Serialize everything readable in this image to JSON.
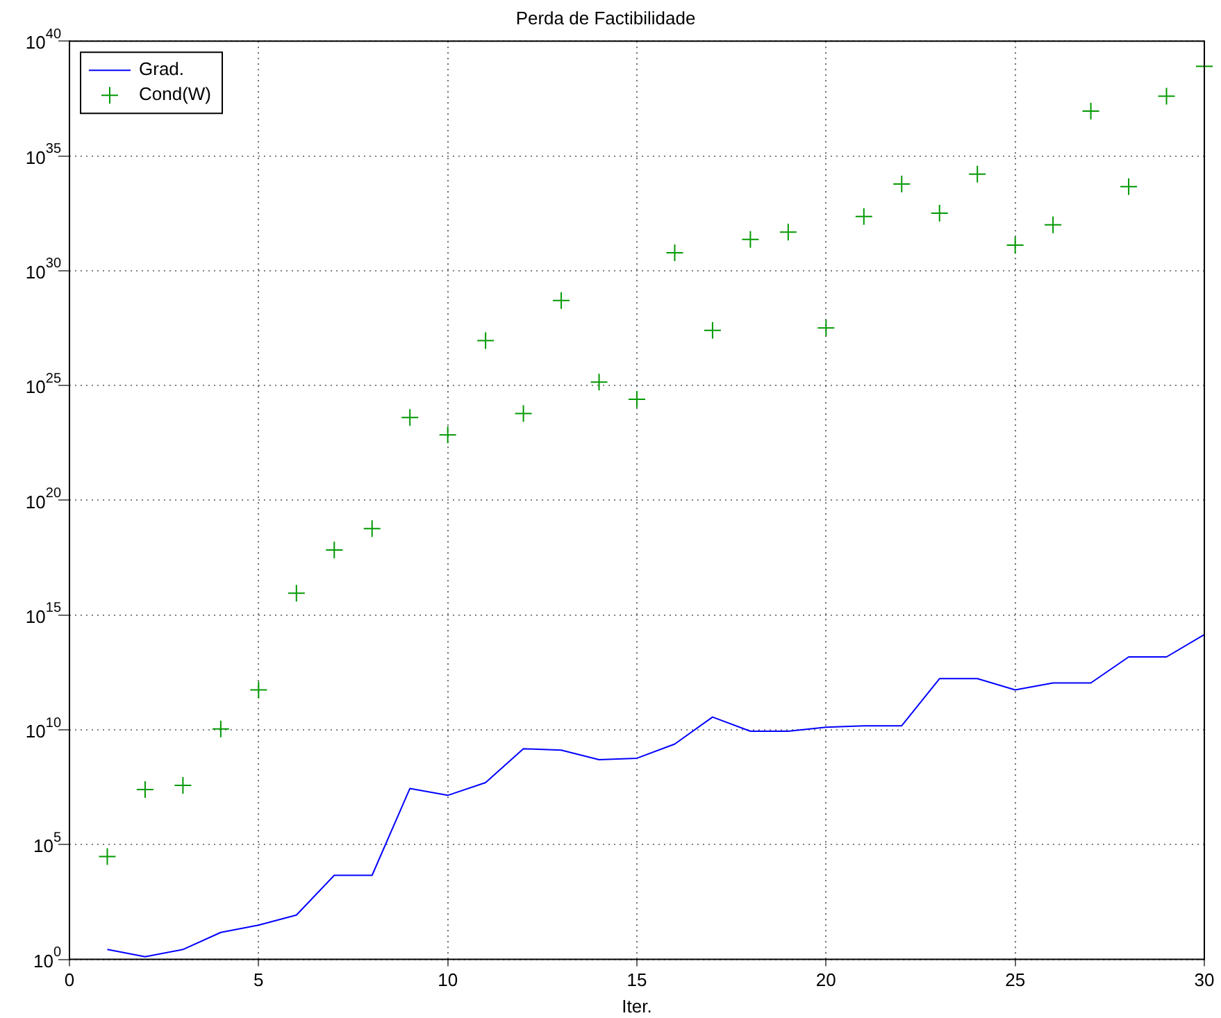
{
  "chart_data": {
    "type": "line",
    "title": "Perda de Factibilidade",
    "xlabel": "Iter.",
    "log": "y",
    "grid": true,
    "legend": "top left",
    "x": [
      1,
      2,
      3,
      4,
      5,
      6,
      7,
      8,
      9,
      10,
      11,
      12,
      13,
      14,
      15,
      16,
      17,
      18,
      19,
      20,
      21,
      22,
      23,
      24,
      25,
      26,
      27,
      28,
      29,
      30
    ],
    "xlim": [
      0,
      30
    ],
    "xticks": [
      0,
      5,
      10,
      15,
      20,
      25,
      30
    ],
    "ylim": [
      1,
      1e+40
    ],
    "yticks": [
      {
        "value": 1,
        "label": "10$^{0}$"
      },
      {
        "value": 100000.0,
        "label": "10$^{5}$"
      },
      {
        "value": 10000000000.0,
        "label": "10$^{10}$"
      },
      {
        "value": 1000000000000000.0,
        "label": "10$^{15}$"
      },
      {
        "value": 1e+20,
        "label": "10$^{20}$"
      },
      {
        "value": 1e+25,
        "label": "10$^{25}$"
      },
      {
        "value": 1e+30,
        "label": "10$^{30}$"
      },
      {
        "value": 1e+35,
        "label": "10$^{35}$"
      },
      {
        "value": 1e+40,
        "label": "10$^{40}$"
      }
    ],
    "series": [
      {
        "name": "Grad.",
        "color": "#0000ff",
        "marker": "none",
        "line_style": "solid",
        "values": [
          2.7,
          1.3,
          2.7,
          15,
          31,
          85,
          4600.0,
          4600.0,
          28000000.0,
          14000000.0,
          50000000.0,
          1500000000.0,
          1300000000.0,
          500000000.0,
          580000000.0,
          2400000000.0,
          36000000000.0,
          8700000000.0,
          8700000000.0,
          13000000000.0,
          15000000000.0,
          15000000000.0,
          1700000000000.0,
          1700000000000.0,
          550000000000.0,
          1100000000000.0,
          1100000000000.0,
          15000000000000.0,
          15000000000000.0,
          140000000000000.0
        ]
      },
      {
        "name": "Cond(W)",
        "type": "scatter",
        "color": "#009900",
        "marker": "cross",
        "values": [
          30000.0,
          25000000.0,
          38000000.0,
          11000000000.0,
          550000000000.0,
          9000000000000000.0,
          6.8e+17,
          5.8e+18,
          4e+23,
          7e+22,
          9e+26,
          6e+23,
          5e+28,
          1.4e+25,
          2.5e+24,
          6e+30,
          2.5e+27,
          2.3e+31,
          4.8e+31,
          3.2e+27,
          2.3e+32,
          6e+33,
          3.2e+32,
          1.6e+34,
          1.3e+31,
          1e+32,
          9e+36,
          4.6e+33,
          4e+37,
          8e+38
        ]
      }
    ]
  }
}
